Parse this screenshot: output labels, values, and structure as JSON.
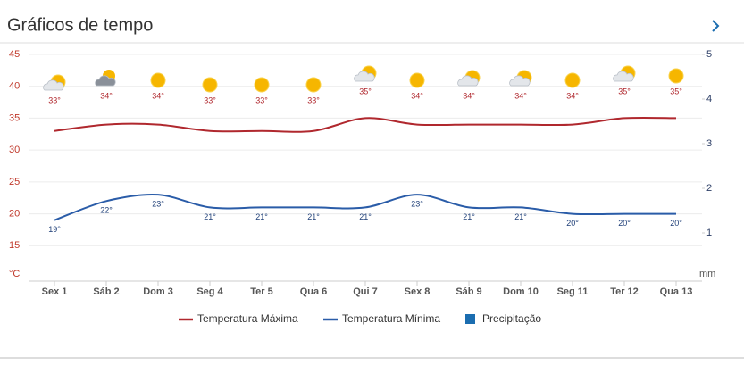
{
  "header": {
    "title": "Gráficos de tempo"
  },
  "chart_data": {
    "type": "line",
    "categories": [
      "Sex 1",
      "Sáb 2",
      "Dom 3",
      "Seg 4",
      "Ter 5",
      "Qua 6",
      "Qui 7",
      "Sex 8",
      "Sáb 9",
      "Dom 10",
      "Seg 11",
      "Ter 12",
      "Qua 13"
    ],
    "series": [
      {
        "name": "Temperatura Máxima",
        "color": "#b0282e",
        "values": [
          33,
          34,
          34,
          33,
          33,
          33,
          35,
          34,
          34,
          34,
          34,
          35,
          35
        ],
        "value_labels": [
          "33°",
          "34°",
          "34°",
          "33°",
          "33°",
          "33°",
          "35°",
          "34°",
          "34°",
          "34°",
          "34°",
          "35°",
          "35°"
        ]
      },
      {
        "name": "Temperatura Mínima",
        "color": "#2a5ca8",
        "values": [
          19,
          22,
          23,
          21,
          21,
          21,
          21,
          23,
          21,
          21,
          20,
          20,
          20
        ],
        "value_labels": [
          "19°",
          "22°",
          "23°",
          "21°",
          "21°",
          "21°",
          "21°",
          "23°",
          "21°",
          "21°",
          "20°",
          "20°",
          "20°"
        ]
      },
      {
        "name": "Precipitação",
        "type": "bar",
        "axis": "y2",
        "color": "#1b6db0",
        "values": [
          0,
          0,
          0,
          0,
          0,
          0,
          0,
          0,
          0,
          0,
          0,
          0,
          0
        ]
      }
    ],
    "ylim": [
      10,
      45
    ],
    "yticks": [
      15,
      20,
      25,
      30,
      35,
      40,
      45
    ],
    "y_unit": "°C",
    "y2lim": [
      0,
      5
    ],
    "y2ticks": [
      1,
      2,
      3,
      4,
      5
    ],
    "y2_unit": "mm",
    "grid": true
  }
}
